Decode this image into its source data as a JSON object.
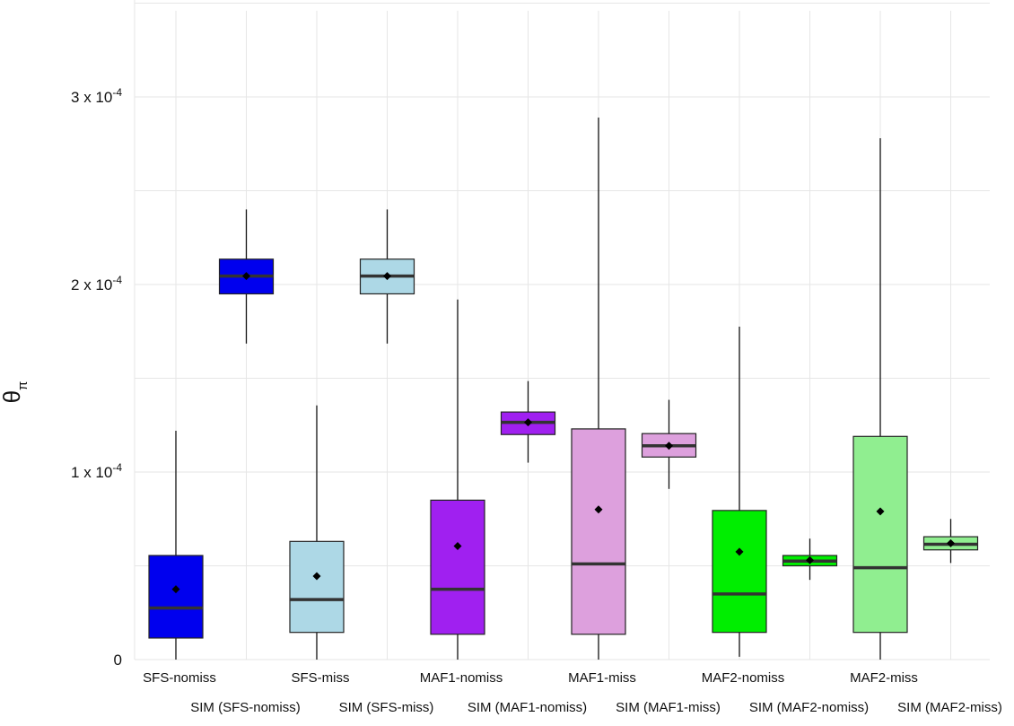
{
  "chart_data": {
    "type": "box",
    "ylabel_main": "θ",
    "ylabel_sub": "π",
    "ylim": [
      0,
      0.00035
    ],
    "yticks": [
      {
        "value": 0,
        "base": "0",
        "exp": ""
      },
      {
        "value": 0.0001,
        "base": "1 x 10",
        "exp": "-4"
      },
      {
        "value": 0.0002,
        "base": "2 x 10",
        "exp": "-4"
      },
      {
        "value": 0.0003,
        "base": "3 x 10",
        "exp": "-4"
      }
    ],
    "grid": true,
    "categories": [
      "SFS-nomiss",
      "SIM (SFS-nomiss)",
      "SFS-miss",
      "SIM (SFS-miss)",
      "MAF1-nomiss",
      "SIM (MAF1-nomiss)",
      "MAF1-miss",
      "SIM (MAF1-miss)",
      "MAF2-nomiss",
      "SIM (MAF2-nomiss)",
      "MAF2-miss",
      "SIM (MAF2-miss)"
    ],
    "boxes": [
      {
        "category": "SFS-nomiss",
        "color": "#0000ee",
        "whisker_low": 0.0,
        "q1": 1.15e-05,
        "median": 2.75e-05,
        "q3": 5.55e-05,
        "whisker_high": 0.000122,
        "mean": 3.75e-05
      },
      {
        "category": "SIM (SFS-nomiss)",
        "color": "#0000ee",
        "whisker_low": 0.0001685,
        "q1": 0.000195,
        "median": 0.0002045,
        "q3": 0.0002135,
        "whisker_high": 0.00024,
        "mean": 0.0002045
      },
      {
        "category": "SFS-miss",
        "color": "#add8e6",
        "whisker_low": 0.0,
        "q1": 1.45e-05,
        "median": 3.2e-05,
        "q3": 6.3e-05,
        "whisker_high": 0.0001355,
        "mean": 4.45e-05
      },
      {
        "category": "SIM (SFS-miss)",
        "color": "#add8e6",
        "whisker_low": 0.0001685,
        "q1": 0.000195,
        "median": 0.0002045,
        "q3": 0.0002135,
        "whisker_high": 0.00024,
        "mean": 0.0002045
      },
      {
        "category": "MAF1-nomiss",
        "color": "#a020f0",
        "whisker_low": 0.0,
        "q1": 1.35e-05,
        "median": 3.75e-05,
        "q3": 8.5e-05,
        "whisker_high": 0.000192,
        "mean": 6.05e-05
      },
      {
        "category": "SIM (MAF1-nomiss)",
        "color": "#a020f0",
        "whisker_low": 0.000105,
        "q1": 0.00012,
        "median": 0.0001265,
        "q3": 0.000132,
        "whisker_high": 0.0001485,
        "mean": 0.0001265
      },
      {
        "category": "MAF1-miss",
        "color": "#dda0dd",
        "whisker_low": 0.0,
        "q1": 1.35e-05,
        "median": 5.1e-05,
        "q3": 0.000123,
        "whisker_high": 0.000289,
        "mean": 8e-05
      },
      {
        "category": "SIM (MAF1-miss)",
        "color": "#dda0dd",
        "whisker_low": 9.1e-05,
        "q1": 0.000108,
        "median": 0.000114,
        "q3": 0.0001205,
        "whisker_high": 0.0001385,
        "mean": 0.000114
      },
      {
        "category": "MAF2-nomiss",
        "color": "#00ee00",
        "whisker_low": 1.5e-06,
        "q1": 1.45e-05,
        "median": 3.5e-05,
        "q3": 7.95e-05,
        "whisker_high": 0.0001775,
        "mean": 5.75e-05
      },
      {
        "category": "SIM (MAF2-nomiss)",
        "color": "#00ee00",
        "whisker_low": 4.25e-05,
        "q1": 5e-05,
        "median": 5.25e-05,
        "q3": 5.55e-05,
        "whisker_high": 6.45e-05,
        "mean": 5.3e-05
      },
      {
        "category": "MAF2-miss",
        "color": "#90ee90",
        "whisker_low": 0.0,
        "q1": 1.45e-05,
        "median": 4.9e-05,
        "q3": 0.000119,
        "whisker_high": 0.000278,
        "mean": 7.9e-05
      },
      {
        "category": "SIM (MAF2-miss)",
        "color": "#90ee90",
        "whisker_low": 5.15e-05,
        "q1": 5.85e-05,
        "median": 6.15e-05,
        "q3": 6.55e-05,
        "whisker_high": 7.5e-05,
        "mean": 6.2e-05
      }
    ]
  }
}
